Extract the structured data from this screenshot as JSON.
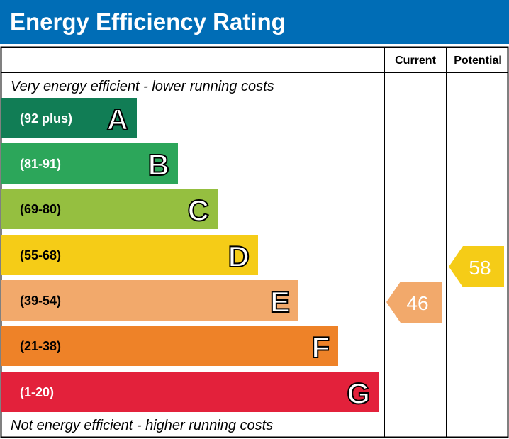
{
  "chart_data": {
    "type": "bar",
    "title": "Energy Efficiency Rating",
    "columns": [
      "Current",
      "Potential"
    ],
    "top_note": "Very energy efficient - lower running costs",
    "bottom_note": "Not energy efficient - higher running costs",
    "bands": [
      {
        "letter": "A",
        "range": "(92 plus)",
        "color": "#117d55"
      },
      {
        "letter": "B",
        "range": "(81-91)",
        "color": "#2ca65a"
      },
      {
        "letter": "C",
        "range": "(69-80)",
        "color": "#95bf40"
      },
      {
        "letter": "D",
        "range": "(55-68)",
        "color": "#f5cc17"
      },
      {
        "letter": "E",
        "range": "(39-54)",
        "color": "#f2a96b"
      },
      {
        "letter": "F",
        "range": "(21-38)",
        "color": "#ee8228"
      },
      {
        "letter": "G",
        "range": "(1-20)",
        "color": "#e3213b"
      }
    ],
    "current": {
      "value": 46,
      "band": "E",
      "color": "#f2a96b"
    },
    "potential": {
      "value": 58,
      "band": "D",
      "color": "#f5cc17"
    }
  }
}
